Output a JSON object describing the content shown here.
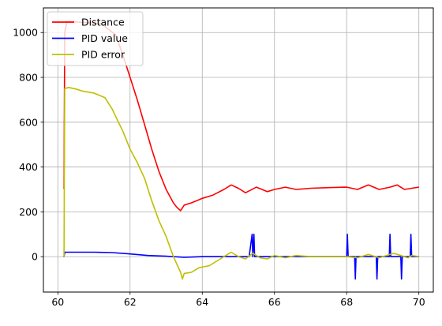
{
  "chart_data": {
    "type": "line",
    "grid": true,
    "legend_position": "top-left",
    "xlim": [
      59.6,
      70.4
    ],
    "ylim": [
      -158,
      1110
    ],
    "xticks": [
      60,
      62,
      64,
      66,
      68,
      70
    ],
    "yticks": [
      0,
      200,
      400,
      600,
      800,
      1000
    ],
    "xtick_labels": [
      "60",
      "62",
      "64",
      "66",
      "68",
      "70"
    ],
    "ytick_labels": [
      "0",
      "200",
      "400",
      "600",
      "800",
      "1000"
    ],
    "series": [
      {
        "name": "Distance",
        "color": "#ff0000",
        "points": [
          [
            60.15,
            305
          ],
          [
            60.17,
            305
          ],
          [
            60.19,
            1000
          ],
          [
            60.25,
            1050
          ],
          [
            61.2,
            1040
          ],
          [
            61.6,
            990
          ],
          [
            61.8,
            900
          ],
          [
            62.0,
            800
          ],
          [
            62.2,
            700
          ],
          [
            62.4,
            590
          ],
          [
            62.6,
            480
          ],
          [
            62.8,
            380
          ],
          [
            63.0,
            300
          ],
          [
            63.2,
            240
          ],
          [
            63.3,
            220
          ],
          [
            63.4,
            205
          ],
          [
            63.5,
            230
          ],
          [
            63.7,
            240
          ],
          [
            64.0,
            260
          ],
          [
            64.3,
            275
          ],
          [
            64.6,
            300
          ],
          [
            64.8,
            320
          ],
          [
            65.0,
            305
          ],
          [
            65.2,
            285
          ],
          [
            65.5,
            310
          ],
          [
            65.8,
            290
          ],
          [
            66.0,
            300
          ],
          [
            66.3,
            310
          ],
          [
            66.6,
            300
          ],
          [
            67.0,
            305
          ],
          [
            67.5,
            308
          ],
          [
            68.0,
            310
          ],
          [
            68.3,
            300
          ],
          [
            68.6,
            320
          ],
          [
            68.9,
            300
          ],
          [
            69.2,
            310
          ],
          [
            69.4,
            320
          ],
          [
            69.6,
            300
          ],
          [
            69.8,
            305
          ],
          [
            70.0,
            310
          ]
        ]
      },
      {
        "name": "PID value",
        "color": "#0000ff",
        "points": [
          [
            60.15,
            0
          ],
          [
            60.17,
            0
          ],
          [
            60.19,
            20
          ],
          [
            61.0,
            20
          ],
          [
            61.5,
            18
          ],
          [
            62.0,
            12
          ],
          [
            62.5,
            5
          ],
          [
            63.0,
            2
          ],
          [
            63.5,
            -3
          ],
          [
            64.0,
            0
          ],
          [
            65.3,
            0
          ],
          [
            65.38,
            100
          ],
          [
            65.4,
            0
          ],
          [
            65.43,
            100
          ],
          [
            65.45,
            0
          ],
          [
            66.0,
            0
          ],
          [
            67.0,
            0
          ],
          [
            68.0,
            0
          ],
          [
            68.02,
            100
          ],
          [
            68.04,
            0
          ],
          [
            68.22,
            0
          ],
          [
            68.24,
            -100
          ],
          [
            68.26,
            0
          ],
          [
            68.82,
            0
          ],
          [
            68.84,
            -100
          ],
          [
            68.86,
            0
          ],
          [
            69.18,
            0
          ],
          [
            69.2,
            100
          ],
          [
            69.22,
            0
          ],
          [
            69.5,
            0
          ],
          [
            69.52,
            -100
          ],
          [
            69.54,
            0
          ],
          [
            69.76,
            0
          ],
          [
            69.78,
            100
          ],
          [
            69.8,
            0
          ],
          [
            70.0,
            0
          ]
        ]
      },
      {
        "name": "PID error",
        "color": "#bfbf00",
        "points": [
          [
            60.15,
            0
          ],
          [
            60.17,
            0
          ],
          [
            60.19,
            750
          ],
          [
            60.3,
            755
          ],
          [
            60.5,
            748
          ],
          [
            60.7,
            738
          ],
          [
            61.0,
            730
          ],
          [
            61.3,
            710
          ],
          [
            61.5,
            660
          ],
          [
            61.8,
            560
          ],
          [
            62.0,
            480
          ],
          [
            62.2,
            420
          ],
          [
            62.4,
            350
          ],
          [
            62.6,
            250
          ],
          [
            62.8,
            160
          ],
          [
            63.0,
            90
          ],
          [
            63.2,
            0
          ],
          [
            63.4,
            -70
          ],
          [
            63.45,
            -100
          ],
          [
            63.5,
            -75
          ],
          [
            63.7,
            -70
          ],
          [
            63.9,
            -50
          ],
          [
            64.2,
            -40
          ],
          [
            64.5,
            -10
          ],
          [
            64.7,
            10
          ],
          [
            64.8,
            20
          ],
          [
            65.0,
            0
          ],
          [
            65.2,
            -10
          ],
          [
            65.4,
            15
          ],
          [
            65.6,
            -5
          ],
          [
            65.8,
            -10
          ],
          [
            66.0,
            5
          ],
          [
            66.3,
            -5
          ],
          [
            66.6,
            5
          ],
          [
            67.0,
            0
          ],
          [
            68.0,
            0
          ],
          [
            68.3,
            -5
          ],
          [
            68.6,
            10
          ],
          [
            68.9,
            -5
          ],
          [
            69.1,
            5
          ],
          [
            69.3,
            15
          ],
          [
            69.5,
            5
          ],
          [
            69.7,
            -5
          ],
          [
            69.8,
            5
          ],
          [
            70.0,
            0
          ]
        ]
      }
    ]
  }
}
